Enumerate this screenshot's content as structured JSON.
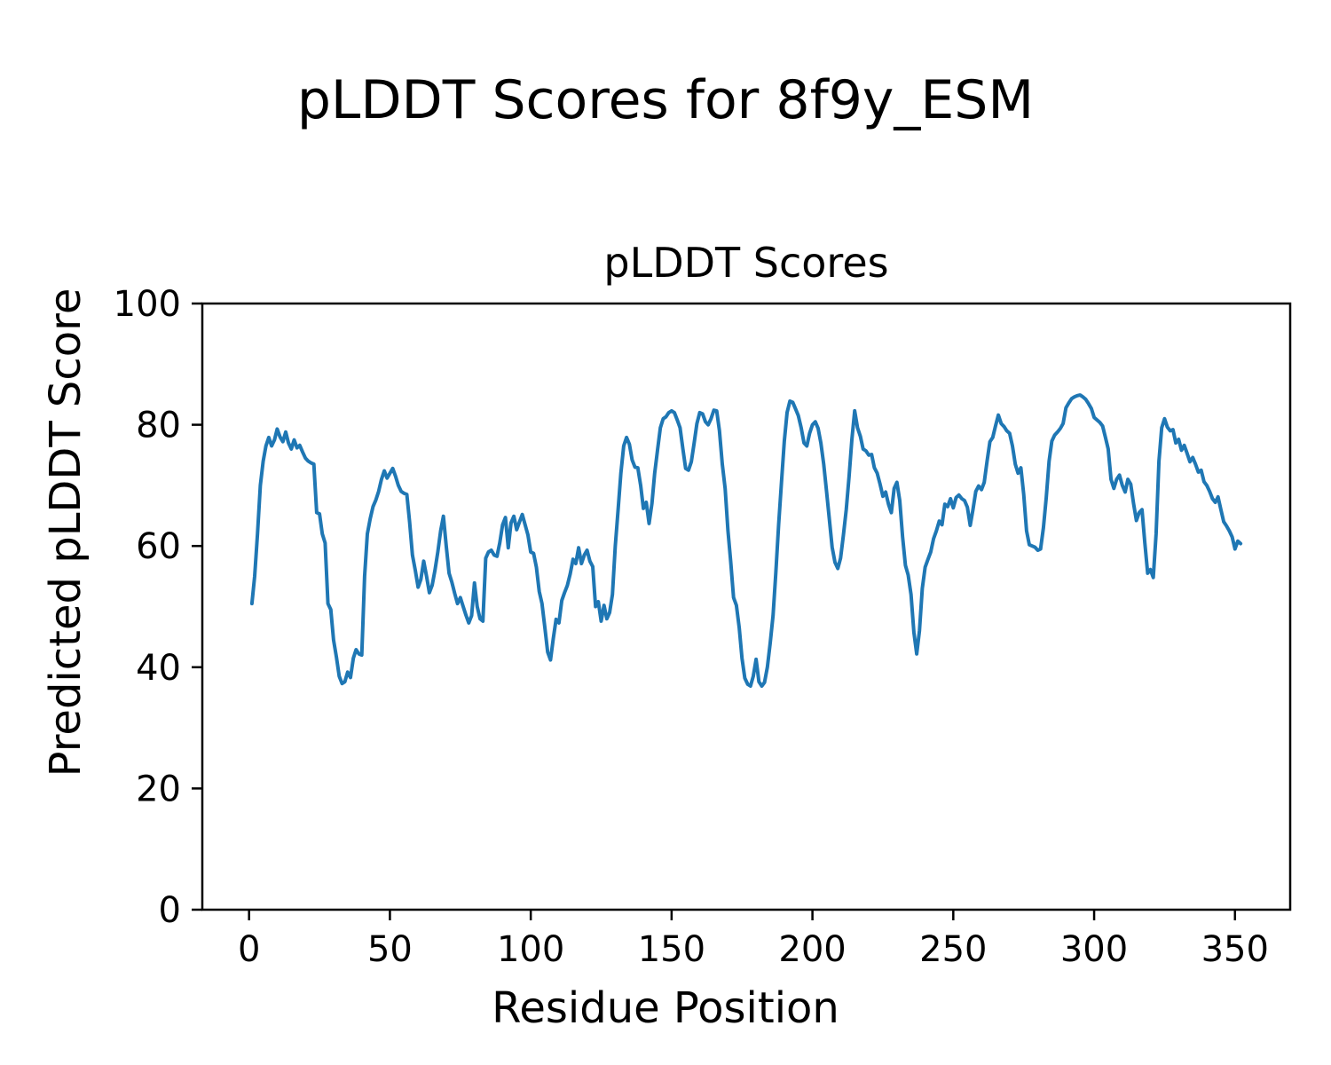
{
  "figure": {
    "suptitle": "pLDDT Scores for 8f9y_ESM"
  },
  "chart_data": {
    "type": "line",
    "title": "pLDDT Scores",
    "xlabel": "Residue Position",
    "ylabel": "Predicted pLDDT Score",
    "legend": null,
    "grid": false,
    "line_color": "#1f77b4",
    "line_width": 4,
    "xlim": [
      -16.6,
      369.6
    ],
    "ylim": [
      0,
      100
    ],
    "x_ticks": [
      0,
      50,
      100,
      150,
      200,
      250,
      300,
      350
    ],
    "y_ticks": [
      0,
      20,
      40,
      60,
      80,
      100
    ],
    "x_start": 1,
    "x_step": 1,
    "series_name": "pLDDT",
    "values": [
      50.5,
      55.0,
      62.0,
      70.0,
      74.0,
      76.5,
      77.9,
      76.5,
      77.5,
      79.3,
      78.0,
      77.2,
      78.8,
      77.0,
      76.0,
      77.5,
      76.2,
      76.6,
      75.5,
      74.5,
      74.0,
      73.7,
      73.5,
      65.5,
      65.3,
      62.0,
      60.5,
      50.5,
      49.5,
      44.5,
      41.7,
      38.5,
      37.3,
      37.6,
      39.2,
      38.3,
      41.5,
      42.9,
      42.2,
      42.0,
      55.0,
      62.0,
      64.5,
      66.5,
      67.6,
      69.0,
      71.0,
      72.4,
      71.2,
      72.0,
      72.8,
      71.5,
      70.0,
      69.0,
      68.7,
      68.5,
      64.0,
      58.5,
      56.0,
      53.2,
      54.5,
      57.5,
      55.0,
      52.3,
      53.5,
      56.0,
      59.0,
      62.5,
      64.9,
      60.0,
      55.5,
      54.0,
      52.2,
      50.5,
      51.5,
      50.0,
      48.6,
      47.3,
      48.5,
      53.9,
      50.0,
      48.0,
      47.6,
      58.0,
      59.0,
      59.3,
      58.5,
      58.3,
      60.5,
      63.5,
      64.7,
      59.7,
      63.8,
      64.9,
      62.7,
      64.0,
      65.2,
      63.5,
      61.8,
      59.0,
      58.8,
      56.5,
      52.5,
      50.5,
      46.6,
      42.5,
      41.2,
      44.7,
      47.9,
      47.3,
      51.0,
      52.3,
      53.5,
      55.4,
      57.8,
      57.1,
      59.7,
      57.1,
      58.5,
      59.3,
      57.5,
      56.6,
      50.0,
      50.8,
      47.6,
      50.2,
      48.0,
      49.0,
      52.0,
      60.0,
      66.0,
      72.0,
      76.5,
      77.9,
      76.8,
      74.2,
      73.0,
      72.9,
      70.0,
      66.2,
      67.2,
      63.7,
      67.0,
      72.0,
      75.8,
      79.5,
      81.0,
      81.3,
      82.0,
      82.3,
      82.0,
      80.8,
      79.5,
      76.0,
      72.8,
      72.5,
      73.9,
      77.0,
      80.2,
      82.0,
      81.8,
      80.5,
      80.0,
      81.0,
      82.4,
      82.3,
      79.0,
      73.5,
      69.5,
      62.5,
      57.4,
      51.5,
      50.2,
      46.5,
      41.5,
      38.2,
      37.2,
      36.9,
      38.5,
      41.3,
      37.6,
      36.9,
      37.5,
      40.0,
      44.0,
      48.5,
      55.5,
      63.5,
      70.5,
      77.3,
      82.0,
      83.9,
      83.7,
      82.6,
      81.5,
      79.5,
      77.0,
      76.5,
      78.6,
      80.0,
      80.5,
      79.4,
      77.0,
      73.5,
      69.0,
      64.5,
      59.8,
      57.3,
      56.3,
      58.0,
      61.8,
      66.0,
      71.5,
      77.5,
      82.3,
      79.5,
      78.1,
      76.0,
      75.7,
      75.0,
      75.1,
      72.9,
      72.0,
      70.2,
      68.2,
      68.9,
      66.9,
      65.5,
      69.5,
      70.5,
      67.5,
      61.5,
      56.8,
      55.2,
      52.0,
      45.8,
      42.2,
      46.0,
      53.0,
      56.5,
      57.8,
      59.0,
      61.2,
      62.5,
      64.1,
      63.5,
      66.9,
      66.5,
      67.8,
      66.3,
      68.0,
      68.4,
      67.8,
      67.5,
      66.4,
      63.4,
      66.0,
      69.0,
      69.9,
      69.3,
      70.5,
      74.0,
      77.2,
      77.9,
      79.8,
      81.6,
      80.2,
      79.7,
      79.0,
      78.6,
      76.5,
      73.5,
      72.0,
      72.9,
      68.5,
      62.5,
      60.2,
      60.0,
      59.8,
      59.3,
      59.5,
      63.0,
      68.0,
      74.0,
      77.3,
      78.3,
      78.8,
      79.4,
      80.2,
      82.8,
      83.6,
      84.3,
      84.6,
      84.8,
      84.9,
      84.6,
      84.2,
      83.5,
      82.7,
      81.2,
      80.8,
      80.4,
      79.8,
      77.9,
      76.0,
      71.0,
      69.5,
      71.0,
      71.7,
      70.0,
      68.9,
      71.0,
      70.2,
      67.0,
      64.2,
      65.5,
      66.0,
      60.5,
      55.5,
      56.1,
      54.8,
      62.0,
      74.0,
      79.5,
      81.0,
      79.6,
      79.0,
      79.2,
      77.0,
      77.6,
      75.8,
      76.6,
      75.3,
      73.9,
      74.6,
      73.5,
      72.2,
      72.5,
      70.6,
      70.0,
      69.0,
      67.8,
      67.2,
      68.1,
      66.0,
      64.0,
      63.3,
      62.5,
      61.5,
      59.5,
      60.8,
      60.4
    ]
  },
  "layout_text": {
    "plot_bg": "#ffffff",
    "spine_color": "#000000"
  }
}
